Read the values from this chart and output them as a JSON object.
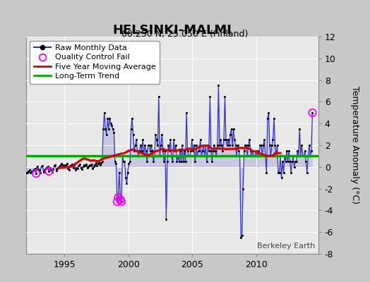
{
  "title": "HELSINKI-MALMI",
  "subtitle": "60.250 N, 25.050 E (Finland)",
  "ylabel": "Temperature Anomaly (°C)",
  "credit": "Berkeley Earth",
  "ylim": [
    -8,
    12
  ],
  "xlim": [
    1992.0,
    2014.83
  ],
  "xticks": [
    1995,
    2000,
    2005,
    2010
  ],
  "yticks": [
    -8,
    -6,
    -4,
    -2,
    0,
    2,
    4,
    6,
    8,
    10,
    12
  ],
  "bg_color": "#c8c8c8",
  "plot_bg_color": "#e8e8e8",
  "grid_color": "#ffffff",
  "long_term_trend_value": 1.05,
  "raw_color": "#3333cc",
  "raw_fill_color": "#9999dd",
  "ma_color": "#dd0000",
  "trend_color": "#00aa00",
  "qc_color": "#ff00ff",
  "legend_labels": [
    "Raw Monthly Data",
    "Quality Control Fail",
    "Five Year Moving Average",
    "Long-Term Trend"
  ],
  "raw_monthly_data": [
    [
      1992.042,
      -0.55
    ],
    [
      1992.125,
      -0.5
    ],
    [
      1992.208,
      -0.4
    ],
    [
      1992.292,
      -0.3
    ],
    [
      1992.375,
      -0.55
    ],
    [
      1992.458,
      -0.4
    ],
    [
      1992.542,
      -0.35
    ],
    [
      1992.625,
      -0.25
    ],
    [
      1992.708,
      -0.15
    ],
    [
      1992.792,
      -0.6
    ],
    [
      1992.875,
      0.05
    ],
    [
      1992.958,
      -0.2
    ],
    [
      1993.042,
      -0.3
    ],
    [
      1993.125,
      -0.5
    ],
    [
      1993.208,
      0.05
    ],
    [
      1993.292,
      0.1
    ],
    [
      1993.375,
      -0.45
    ],
    [
      1993.458,
      -0.25
    ],
    [
      1993.542,
      -0.15
    ],
    [
      1993.625,
      -0.05
    ],
    [
      1993.708,
      0.05
    ],
    [
      1993.792,
      -0.4
    ],
    [
      1993.875,
      -0.1
    ],
    [
      1993.958,
      -0.25
    ],
    [
      1994.042,
      -0.45
    ],
    [
      1994.125,
      -0.2
    ],
    [
      1994.208,
      0.1
    ],
    [
      1994.292,
      0.2
    ],
    [
      1994.375,
      -0.35
    ],
    [
      1994.458,
      -0.15
    ],
    [
      1994.542,
      -0.05
    ],
    [
      1994.625,
      0.05
    ],
    [
      1994.708,
      0.2
    ],
    [
      1994.792,
      0.3
    ],
    [
      1994.875,
      0.1
    ],
    [
      1994.958,
      0.2
    ],
    [
      1995.042,
      0.05
    ],
    [
      1995.125,
      0.15
    ],
    [
      1995.208,
      0.3
    ],
    [
      1995.292,
      -0.15
    ],
    [
      1995.375,
      -0.3
    ],
    [
      1995.458,
      0.1
    ],
    [
      1995.542,
      0.15
    ],
    [
      1995.625,
      0.25
    ],
    [
      1995.708,
      -0.05
    ],
    [
      1995.792,
      0.15
    ],
    [
      1995.875,
      -0.25
    ],
    [
      1995.958,
      -0.1
    ],
    [
      1996.042,
      -0.15
    ],
    [
      1996.125,
      0.1
    ],
    [
      1996.208,
      0.25
    ],
    [
      1996.292,
      -0.1
    ],
    [
      1996.375,
      -0.2
    ],
    [
      1996.458,
      0.05
    ],
    [
      1996.542,
      0.15
    ],
    [
      1996.625,
      0.1
    ],
    [
      1996.708,
      0.25
    ],
    [
      1996.792,
      -0.05
    ],
    [
      1996.875,
      0.05
    ],
    [
      1996.958,
      0.15
    ],
    [
      1997.042,
      0.1
    ],
    [
      1997.125,
      0.25
    ],
    [
      1997.208,
      -0.15
    ],
    [
      1997.292,
      0.05
    ],
    [
      1997.375,
      0.2
    ],
    [
      1997.458,
      0.35
    ],
    [
      1997.542,
      0.1
    ],
    [
      1997.625,
      0.3
    ],
    [
      1997.708,
      0.45
    ],
    [
      1997.792,
      0.2
    ],
    [
      1997.875,
      0.35
    ],
    [
      1997.958,
      0.5
    ],
    [
      1998.042,
      3.5
    ],
    [
      1998.125,
      5.0
    ],
    [
      1998.208,
      3.5
    ],
    [
      1998.292,
      3.0
    ],
    [
      1998.375,
      4.5
    ],
    [
      1998.458,
      3.5
    ],
    [
      1998.542,
      4.5
    ],
    [
      1998.625,
      4.0
    ],
    [
      1998.708,
      3.8
    ],
    [
      1998.792,
      3.5
    ],
    [
      1998.875,
      3.2
    ],
    [
      1998.958,
      0.5
    ],
    [
      1999.042,
      0.3
    ],
    [
      1999.125,
      -3.2
    ],
    [
      1999.208,
      -2.8
    ],
    [
      1999.292,
      -0.5
    ],
    [
      1999.375,
      -3.0
    ],
    [
      1999.458,
      -3.2
    ],
    [
      1999.542,
      1.0
    ],
    [
      1999.625,
      0.5
    ],
    [
      1999.708,
      0.5
    ],
    [
      1999.792,
      -1.0
    ],
    [
      1999.875,
      -1.5
    ],
    [
      1999.958,
      -0.5
    ],
    [
      2000.042,
      0.3
    ],
    [
      2000.125,
      0.5
    ],
    [
      2000.208,
      3.5
    ],
    [
      2000.292,
      4.5
    ],
    [
      2000.375,
      3.0
    ],
    [
      2000.458,
      1.5
    ],
    [
      2000.542,
      2.0
    ],
    [
      2000.625,
      2.5
    ],
    [
      2000.708,
      1.5
    ],
    [
      2000.792,
      1.0
    ],
    [
      2000.875,
      1.5
    ],
    [
      2000.958,
      2.0
    ],
    [
      2001.042,
      1.5
    ],
    [
      2001.125,
      2.5
    ],
    [
      2001.208,
      1.0
    ],
    [
      2001.292,
      2.0
    ],
    [
      2001.375,
      1.5
    ],
    [
      2001.458,
      0.5
    ],
    [
      2001.542,
      2.0
    ],
    [
      2001.625,
      2.0
    ],
    [
      2001.708,
      1.5
    ],
    [
      2001.792,
      2.0
    ],
    [
      2001.875,
      1.5
    ],
    [
      2001.958,
      0.5
    ],
    [
      2002.042,
      1.0
    ],
    [
      2002.125,
      3.0
    ],
    [
      2002.208,
      2.5
    ],
    [
      2002.292,
      2.0
    ],
    [
      2002.375,
      6.5
    ],
    [
      2002.458,
      1.0
    ],
    [
      2002.542,
      2.0
    ],
    [
      2002.625,
      3.0
    ],
    [
      2002.708,
      1.5
    ],
    [
      2002.792,
      0.5
    ],
    [
      2002.875,
      1.5
    ],
    [
      2002.958,
      -4.8
    ],
    [
      2003.042,
      0.5
    ],
    [
      2003.125,
      2.0
    ],
    [
      2003.208,
      1.5
    ],
    [
      2003.292,
      2.5
    ],
    [
      2003.375,
      1.0
    ],
    [
      2003.458,
      0.5
    ],
    [
      2003.542,
      2.5
    ],
    [
      2003.625,
      1.5
    ],
    [
      2003.708,
      2.0
    ],
    [
      2003.792,
      0.5
    ],
    [
      2003.875,
      1.0
    ],
    [
      2003.958,
      0.5
    ],
    [
      2004.042,
      1.5
    ],
    [
      2004.125,
      0.5
    ],
    [
      2004.208,
      2.0
    ],
    [
      2004.292,
      0.5
    ],
    [
      2004.375,
      1.5
    ],
    [
      2004.458,
      0.5
    ],
    [
      2004.542,
      5.0
    ],
    [
      2004.625,
      1.5
    ],
    [
      2004.708,
      1.0
    ],
    [
      2004.792,
      1.0
    ],
    [
      2004.875,
      1.5
    ],
    [
      2004.958,
      2.5
    ],
    [
      2005.042,
      1.5
    ],
    [
      2005.125,
      2.0
    ],
    [
      2005.208,
      0.5
    ],
    [
      2005.292,
      2.0
    ],
    [
      2005.375,
      1.0
    ],
    [
      2005.458,
      1.5
    ],
    [
      2005.542,
      1.5
    ],
    [
      2005.625,
      2.5
    ],
    [
      2005.708,
      1.0
    ],
    [
      2005.792,
      1.5
    ],
    [
      2005.875,
      2.0
    ],
    [
      2005.958,
      1.0
    ],
    [
      2006.042,
      2.0
    ],
    [
      2006.125,
      0.5
    ],
    [
      2006.208,
      2.0
    ],
    [
      2006.292,
      1.5
    ],
    [
      2006.375,
      6.5
    ],
    [
      2006.458,
      1.5
    ],
    [
      2006.542,
      0.5
    ],
    [
      2006.625,
      1.5
    ],
    [
      2006.708,
      2.0
    ],
    [
      2006.792,
      1.5
    ],
    [
      2006.875,
      1.0
    ],
    [
      2006.958,
      2.0
    ],
    [
      2007.042,
      7.5
    ],
    [
      2007.125,
      2.0
    ],
    [
      2007.208,
      2.5
    ],
    [
      2007.292,
      2.0
    ],
    [
      2007.375,
      1.5
    ],
    [
      2007.458,
      2.5
    ],
    [
      2007.542,
      6.5
    ],
    [
      2007.625,
      2.5
    ],
    [
      2007.708,
      2.0
    ],
    [
      2007.792,
      2.5
    ],
    [
      2007.875,
      2.0
    ],
    [
      2007.958,
      3.0
    ],
    [
      2008.042,
      3.5
    ],
    [
      2008.125,
      2.0
    ],
    [
      2008.208,
      3.5
    ],
    [
      2008.292,
      2.5
    ],
    [
      2008.375,
      2.0
    ],
    [
      2008.458,
      1.0
    ],
    [
      2008.542,
      2.0
    ],
    [
      2008.625,
      1.5
    ],
    [
      2008.708,
      1.0
    ],
    [
      2008.792,
      -6.5
    ],
    [
      2008.875,
      -6.3
    ],
    [
      2008.958,
      -2.0
    ],
    [
      2009.042,
      1.5
    ],
    [
      2009.125,
      2.0
    ],
    [
      2009.208,
      2.0
    ],
    [
      2009.292,
      1.0
    ],
    [
      2009.375,
      2.0
    ],
    [
      2009.458,
      2.5
    ],
    [
      2009.542,
      1.5
    ],
    [
      2009.625,
      1.0
    ],
    [
      2009.708,
      1.5
    ],
    [
      2009.792,
      1.0
    ],
    [
      2009.875,
      1.0
    ],
    [
      2009.958,
      1.5
    ],
    [
      2010.042,
      1.0
    ],
    [
      2010.125,
      1.5
    ],
    [
      2010.208,
      1.0
    ],
    [
      2010.292,
      2.0
    ],
    [
      2010.375,
      2.0
    ],
    [
      2010.458,
      1.0
    ],
    [
      2010.542,
      2.0
    ],
    [
      2010.625,
      2.5
    ],
    [
      2010.708,
      1.0
    ],
    [
      2010.792,
      -0.5
    ],
    [
      2010.875,
      4.5
    ],
    [
      2010.958,
      5.0
    ],
    [
      2011.042,
      2.0
    ],
    [
      2011.125,
      1.0
    ],
    [
      2011.208,
      2.0
    ],
    [
      2011.292,
      2.5
    ],
    [
      2011.375,
      4.5
    ],
    [
      2011.458,
      2.0
    ],
    [
      2011.542,
      1.0
    ],
    [
      2011.625,
      2.0
    ],
    [
      2011.708,
      -0.5
    ],
    [
      2011.792,
      -0.5
    ],
    [
      2011.875,
      1.0
    ],
    [
      2011.958,
      -1.0
    ],
    [
      2012.042,
      0.5
    ],
    [
      2012.125,
      -0.5
    ],
    [
      2012.208,
      1.0
    ],
    [
      2012.292,
      0.5
    ],
    [
      2012.375,
      1.5
    ],
    [
      2012.458,
      0.5
    ],
    [
      2012.542,
      1.5
    ],
    [
      2012.625,
      0.5
    ],
    [
      2012.708,
      -0.5
    ],
    [
      2012.792,
      0.5
    ],
    [
      2012.875,
      1.0
    ],
    [
      2012.958,
      0.0
    ],
    [
      2013.042,
      0.5
    ],
    [
      2013.125,
      0.5
    ],
    [
      2013.208,
      1.5
    ],
    [
      2013.292,
      1.0
    ],
    [
      2013.375,
      3.5
    ],
    [
      2013.458,
      1.0
    ],
    [
      2013.542,
      2.0
    ],
    [
      2013.625,
      1.0
    ],
    [
      2013.708,
      1.0
    ],
    [
      2013.792,
      1.5
    ],
    [
      2013.875,
      0.5
    ],
    [
      2013.958,
      -0.5
    ],
    [
      2014.042,
      1.0
    ],
    [
      2014.125,
      2.0
    ],
    [
      2014.208,
      1.0
    ],
    [
      2014.292,
      1.5
    ],
    [
      2014.375,
      5.0
    ]
  ],
  "qc_fail_points": [
    [
      1992.792,
      -0.6
    ],
    [
      1993.792,
      -0.4
    ],
    [
      1999.125,
      -3.2
    ],
    [
      1999.208,
      -2.8
    ],
    [
      1999.375,
      -3.0
    ],
    [
      1999.458,
      -3.2
    ],
    [
      2014.375,
      5.0
    ]
  ]
}
